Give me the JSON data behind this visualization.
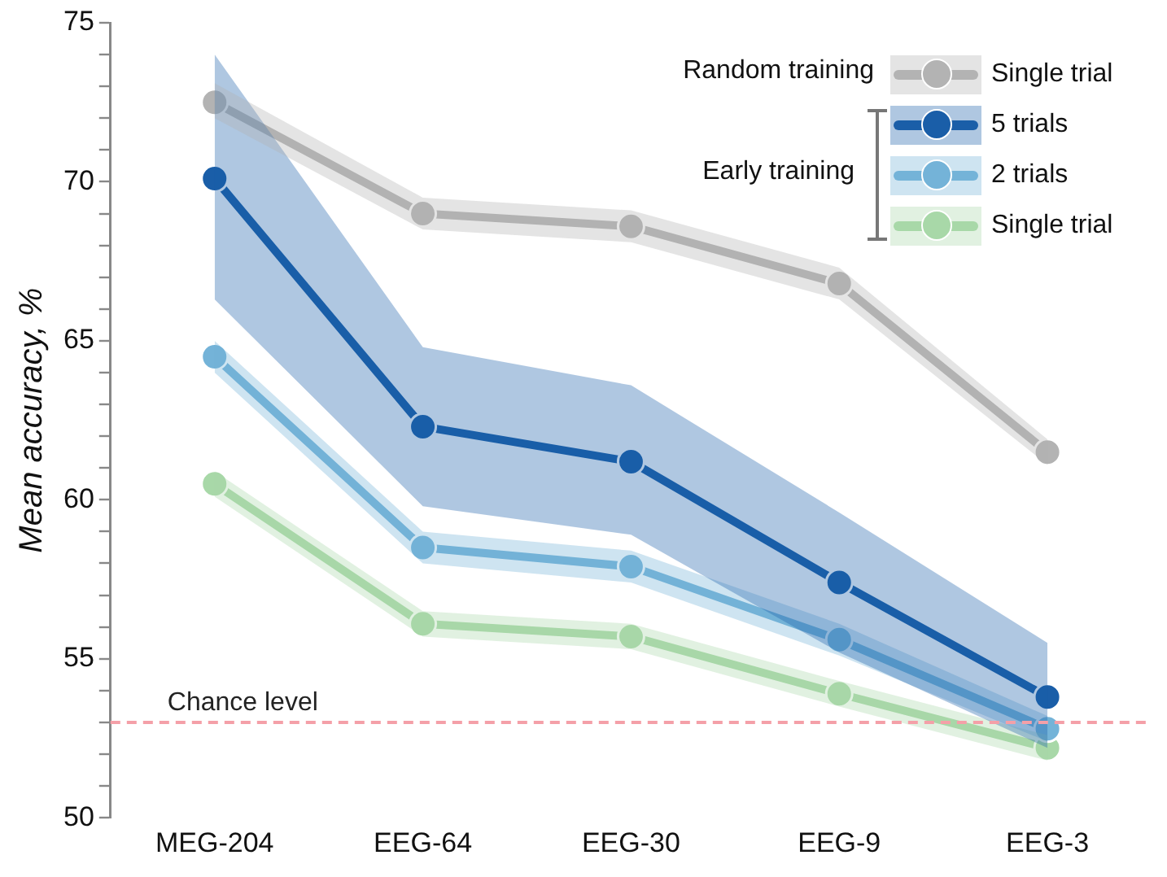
{
  "chart_data": {
    "type": "line",
    "ylabel": "Mean accuracy, %",
    "categories": [
      "MEG-204",
      "EEG-64",
      "EEG-30",
      "EEG-9",
      "EEG-3"
    ],
    "series": [
      {
        "name": "Single trial",
        "color": "#b3b3b3",
        "values": [
          72.5,
          69.0,
          68.6,
          66.8,
          61.5
        ],
        "lower": [
          72.0,
          68.5,
          68.1,
          66.3,
          61.1
        ],
        "upper": [
          73.1,
          69.5,
          69.1,
          67.3,
          61.9
        ]
      },
      {
        "name": "5 trials",
        "color": "#1a5ea8",
        "values": [
          70.1,
          62.3,
          61.2,
          57.4,
          53.8
        ],
        "lower": [
          66.3,
          59.8,
          58.9,
          55.2,
          52.2
        ],
        "upper": [
          74.0,
          64.8,
          63.6,
          59.6,
          55.5
        ]
      },
      {
        "name": "2 trials",
        "color": "#74b3d8",
        "values": [
          64.5,
          58.5,
          57.9,
          55.6,
          52.8
        ],
        "lower": [
          64.0,
          58.0,
          57.4,
          55.1,
          52.4
        ],
        "upper": [
          65.0,
          59.0,
          58.4,
          56.1,
          53.2
        ]
      },
      {
        "name": "Single trial",
        "color": "#a8d8a8",
        "values": [
          60.5,
          56.1,
          55.7,
          53.9,
          52.2
        ],
        "lower": [
          60.1,
          55.7,
          55.3,
          53.5,
          51.8
        ],
        "upper": [
          60.9,
          56.5,
          56.1,
          54.3,
          52.6
        ]
      }
    ],
    "annotations": [
      "Random training",
      "Early training"
    ],
    "ylim": [
      50,
      75
    ],
    "yticks": [
      50,
      {
        "value": 51,
        "label": null
      },
      {
        "value": 52,
        "label": null
      },
      {
        "value": 53,
        "label": null
      },
      {
        "value": 54,
        "label": null
      },
      55,
      {
        "value": 56,
        "label": null
      },
      {
        "value": 57,
        "label": null
      },
      {
        "value": 58,
        "label": null
      },
      {
        "value": 59,
        "label": null
      },
      60,
      {
        "value": 61,
        "label": null
      },
      {
        "value": 62,
        "label": null
      },
      {
        "value": 63,
        "label": null
      },
      {
        "value": 64,
        "label": null
      },
      65,
      {
        "value": 66,
        "label": null
      },
      {
        "value": 67,
        "label": null
      },
      {
        "value": 68,
        "label": null
      },
      {
        "value": 69,
        "label": null
      },
      70,
      {
        "value": 71,
        "label": null
      },
      {
        "value": 72,
        "label": null
      },
      {
        "value": 73,
        "label": null
      },
      {
        "value": 74,
        "label": null
      },
      75
    ],
    "ref_lines": [
      {
        "axis": "y",
        "value": 53,
        "label": "Chance level",
        "color": "#f4a0a8",
        "line_style": "dashed"
      }
    ],
    "grid": false,
    "legend": "top right",
    "marker": "circle",
    "line_style": "solid"
  }
}
